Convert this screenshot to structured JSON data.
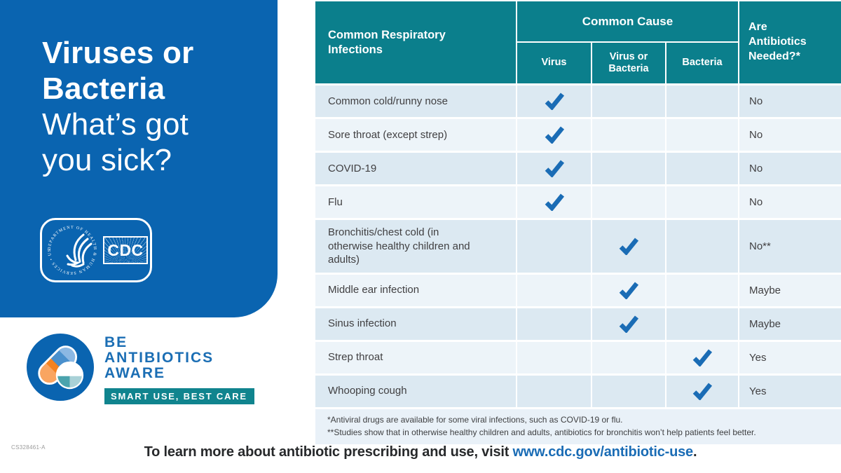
{
  "left_panel": {
    "title_line1": "Viruses or",
    "title_line2": "Bacteria",
    "title_line3": "What’s got",
    "title_line4": "you sick?",
    "hhs_seal_text": "DEPARTMENT OF HEALTH & HUMAN SERVICES • USA •",
    "cdc_logo_text": "CDC"
  },
  "aware_logo": {
    "line1": "BE",
    "line2": "ANTIBIOTICS",
    "line3": "AWARE",
    "tagline": "SMART USE, BEST CARE"
  },
  "table": {
    "col1_header": "Common Respiratory Infections",
    "group_header": "Common Cause",
    "sub_headers": [
      "Virus",
      "Virus or Bacteria",
      "Bacteria"
    ],
    "col5_header": "Are Antibiotics Needed?*",
    "rows": [
      {
        "infection": "Common cold/runny nose",
        "cause": "virus",
        "answer": "No"
      },
      {
        "infection": "Sore throat (except strep)",
        "cause": "virus",
        "answer": "No"
      },
      {
        "infection": "COVID-19",
        "cause": "virus",
        "answer": "No"
      },
      {
        "infection": "Flu",
        "cause": "virus",
        "answer": "No"
      },
      {
        "infection": "Bronchitis/chest cold (in otherwise healthy children and adults)",
        "cause": "virus_or_bacteria",
        "answer": "No**"
      },
      {
        "infection": "Middle ear infection",
        "cause": "virus_or_bacteria",
        "answer": "Maybe"
      },
      {
        "infection": "Sinus infection",
        "cause": "virus_or_bacteria",
        "answer": "Maybe"
      },
      {
        "infection": "Strep throat",
        "cause": "bacteria",
        "answer": "Yes"
      },
      {
        "infection": "Whooping cough",
        "cause": "bacteria",
        "answer": "Yes"
      }
    ],
    "footnotes": [
      "*Antiviral drugs are available for some viral infections, such as COVID-19 or flu.",
      "**Studies show that in otherwise healthy children and adults, antibiotics for bronchitis won’t help patients feel better."
    ]
  },
  "footer": {
    "doc_code": "CS328461-A",
    "text_before_link": "To learn more about antibiotic prescribing and use, visit ",
    "link_text": "www.cdc.gov/antibiotic-use",
    "text_after_link": "."
  },
  "colors": {
    "panel_blue": "#0a64b0",
    "teal_header": "#0b7f8c",
    "tagline_teal": "#10848e",
    "check_blue": "#1a6cb5",
    "link_blue": "#1a6cb5",
    "row_dark": "#dce9f2",
    "row_light": "#edf4f9",
    "footnote_bg": "#e9f1f8",
    "pill_orange": "#f58220",
    "pill_orange_light": "#f9a561",
    "pill_blue": "#4a90cd",
    "pill_blue_light": "#8cb8e3",
    "ball_teal": "#4aa3ad",
    "ball_teal_light": "#a9d1d7"
  }
}
